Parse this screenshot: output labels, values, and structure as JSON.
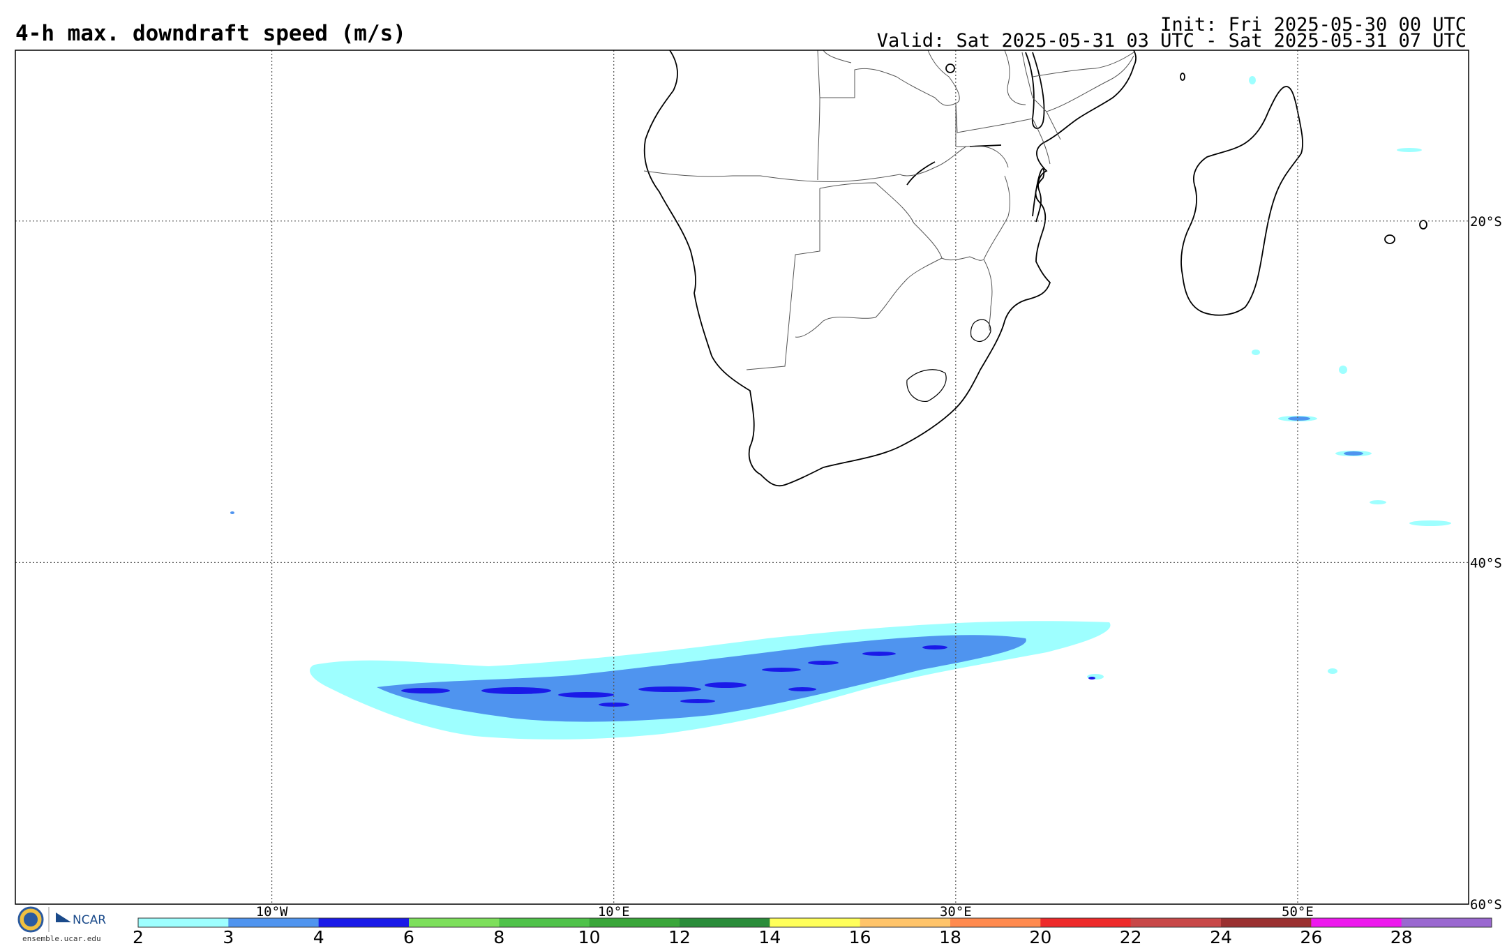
{
  "header": {
    "title": "4-h max. downdraft speed (m/s)",
    "init": "Init: Fri 2025-05-30 00 UTC",
    "valid": "Valid: Sat 2025-05-31 03 UTC - Sat 2025-05-31 07 UTC"
  },
  "map": {
    "lon_range": [
      -25,
      60
    ],
    "lat_range": [
      -60,
      -10
    ],
    "lon_ticks": [
      {
        "value": -10,
        "label": "10°W"
      },
      {
        "value": 10,
        "label": "10°E"
      },
      {
        "value": 30,
        "label": "30°E"
      },
      {
        "value": 50,
        "label": "50°E"
      }
    ],
    "lat_ticks": [
      {
        "value": -20,
        "label": "20°S"
      },
      {
        "value": -40,
        "label": "40°S"
      },
      {
        "value": -60,
        "label": "60°S"
      }
    ],
    "grid": true
  },
  "colorbar": {
    "ticks": [
      "2",
      "3",
      "4",
      "6",
      "8",
      "10",
      "12",
      "14",
      "16",
      "18",
      "20",
      "22",
      "24",
      "26",
      "28"
    ],
    "colors": [
      "#9effff",
      "#4f94ef",
      "#1a1ae8",
      "#7ddf5b",
      "#4fc24a",
      "#3aa63a",
      "#2a8c3a",
      "#ffff5a",
      "#ffc46a",
      "#ff8a4e",
      "#ee2a2a",
      "#c84848",
      "#9a3030",
      "#ee18ee",
      "#9a68d0"
    ]
  },
  "footer": {
    "url": "ensemble.ucar.edu",
    "logo_text": "NCAR",
    "nsf_text": "NSF"
  }
}
